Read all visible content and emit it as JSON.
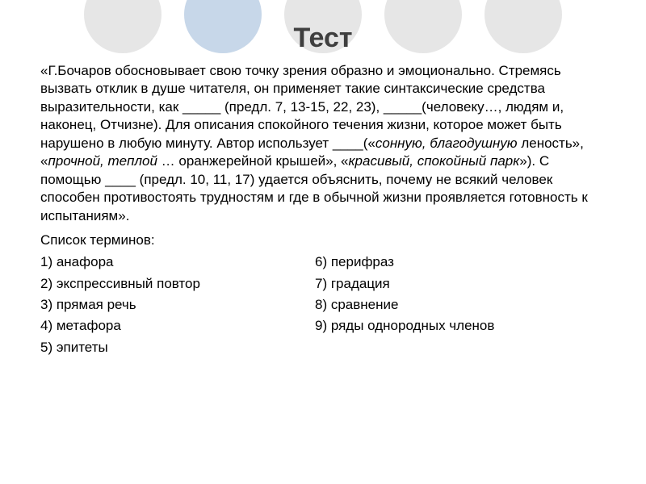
{
  "decor": {
    "circle_colors": [
      "#e6e6e6",
      "#c7d7e9",
      "#e6e6e6",
      "#e6e6e6",
      "#e6e6e6"
    ]
  },
  "title": "Тест",
  "main_paragraph": {
    "part1": "«Г.Бочаров обосновывает свою точку зрения образно и эмоционально. Стремясь вызвать отклик в душе читателя, он применяет такие синтаксические средства выразительности, как _____ (предл. 7, 13-15, 22, 23), _____(человеку…, людям и, наконец, Отчизне). Для описания спокойного течения жизни, которое может быть нарушено в любую минуту. Автор использует ____(«",
    "italic1": "сонную, благодушную",
    "mid1": " леность», «",
    "italic2": "прочной, теплой",
    "mid2": " … оранжерейной крышей», «",
    "italic3": "красивый, спокойный парк",
    "part2": "»). С помощью ____ (предл. 10, 11, 17) удается объяснить, почему не всякий человек способен противостоять трудностям и где в обычной жизни проявляется готовность к испытаниям»."
  },
  "terms_label": "Список терминов:",
  "terms": {
    "r1_left": "1) анафора",
    "r1_right": "6) перифраз",
    "r2_left": "2) экспрессивный повтор",
    "r2_right": "7) градация",
    "r3_left": "3) прямая речь",
    "r3_right": "8) сравнение",
    "r4_left": "4) метафора",
    "r4_right": "9) ряды однородных членов",
    "r5_left": "5) эпитеты"
  }
}
